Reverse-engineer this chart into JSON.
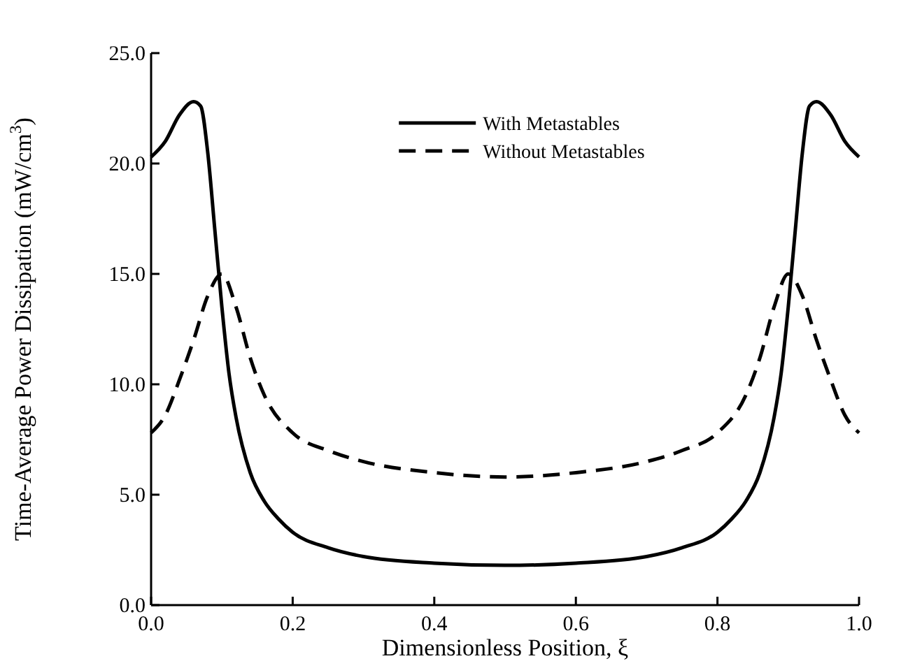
{
  "chart_data": {
    "type": "line",
    "xlabel": "Dimensionless Position, ξ",
    "ylabel": "Time-Average Power Dissipation (mW/cm$^{3}$)",
    "xlim": [
      0,
      1
    ],
    "ylim": [
      0,
      25
    ],
    "xticks": [
      {
        "value": 0,
        "label": "0.0"
      },
      {
        "value": 0.2,
        "label": "0.2"
      },
      {
        "value": 0.4,
        "label": "0.4"
      },
      {
        "value": 0.6,
        "label": "0.6"
      },
      {
        "value": 0.8,
        "label": "0.8"
      },
      {
        "value": 1,
        "label": "1.0"
      }
    ],
    "yticks": [
      {
        "value": 0,
        "label": "0.0"
      },
      {
        "value": 5,
        "label": "5.0"
      },
      {
        "value": 10,
        "label": "10.0"
      },
      {
        "value": 15,
        "label": "15.0"
      },
      {
        "value": 20,
        "label": "20.0"
      },
      {
        "value": 25,
        "label": "25.0"
      }
    ],
    "grid": false,
    "legend": "top",
    "series": [
      {
        "name": "With Metastables",
        "color": "#000000",
        "line_style": "solid",
        "x": [
          0,
          0.02,
          0.04,
          0.06,
          0.07,
          0.08,
          0.09,
          0.1,
          0.11,
          0.12,
          0.14,
          0.16,
          0.18,
          0.2,
          0.25,
          0.3,
          0.4,
          0.5,
          0.6,
          0.7,
          0.75,
          0.8,
          0.82,
          0.84,
          0.86,
          0.88,
          0.89,
          0.9,
          0.91,
          0.92,
          0.93,
          0.94,
          0.96,
          0.98,
          1
        ],
        "values": [
          20.3,
          21,
          22.2,
          22.8,
          22.6,
          20.5,
          17,
          13.5,
          10.5,
          8.5,
          6,
          4.7,
          3.9,
          3.3,
          2.6,
          2.2,
          1.9,
          1.8,
          1.9,
          2.2,
          2.6,
          3.3,
          3.9,
          4.7,
          6,
          8.5,
          10.5,
          13.5,
          17,
          20.5,
          22.6,
          22.8,
          22.2,
          21,
          20.3
        ]
      },
      {
        "name": "Without Metastables",
        "color": "#000000",
        "line_style": "dashed",
        "x": [
          0,
          0.02,
          0.04,
          0.06,
          0.08,
          0.1,
          0.12,
          0.14,
          0.16,
          0.2,
          0.25,
          0.3,
          0.4,
          0.5,
          0.6,
          0.7,
          0.75,
          0.8,
          0.84,
          0.86,
          0.88,
          0.9,
          0.92,
          0.94,
          0.96,
          0.98,
          1
        ],
        "values": [
          7.8,
          8.6,
          10.2,
          12,
          14,
          15,
          13.5,
          11.2,
          9.5,
          7.8,
          7,
          6.5,
          6,
          5.8,
          6,
          6.5,
          7,
          7.8,
          9.5,
          11.2,
          13.5,
          15,
          14,
          12,
          10.2,
          8.6,
          7.8
        ]
      }
    ]
  }
}
